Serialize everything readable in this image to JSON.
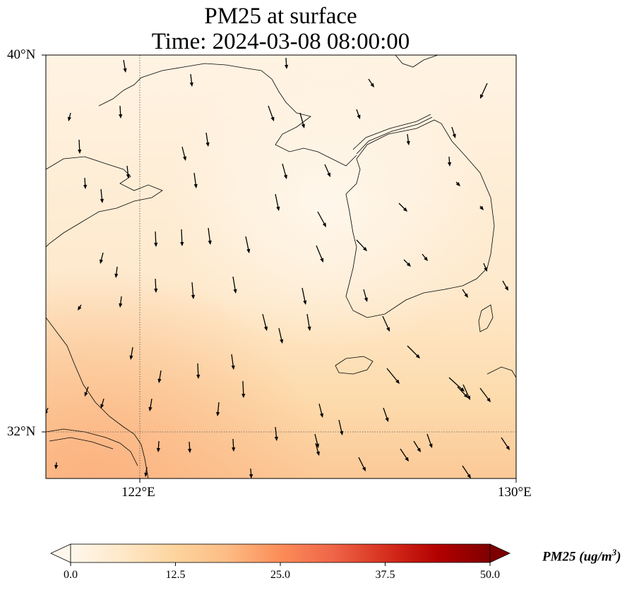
{
  "title": {
    "line1": "PM25 at surface",
    "line2": "Time: 2024-03-08 08:00:00"
  },
  "axes": {
    "lat_labels": [
      "40°N",
      "32°N"
    ],
    "lon_labels": [
      "122°E",
      "130°E"
    ],
    "lat_range": [
      31,
      40
    ],
    "lon_range": [
      120,
      130
    ],
    "gridlines": "dotted",
    "gridline_lats": [
      32
    ],
    "gridline_lons": [
      122
    ]
  },
  "colorbar": {
    "title": "PM25 (ug/m",
    "title_sup": "3",
    "title_end": ")",
    "tick_labels": [
      "0.0",
      "12.5",
      "25.0",
      "37.5",
      "50.0"
    ],
    "range": [
      0,
      50
    ],
    "extend": "both",
    "colormap": "OrRd",
    "colors": [
      "#fff7ec",
      "#fee8c8",
      "#fdd49e",
      "#fdbb84",
      "#fc8d59",
      "#ef6548",
      "#d7301f",
      "#b30000",
      "#7f0000"
    ]
  },
  "field": {
    "variable": "PM25",
    "typical_value": 5,
    "max_value_south": 15
  },
  "wind": {
    "description": "wind vectors",
    "arrow_color": "#000000"
  }
}
